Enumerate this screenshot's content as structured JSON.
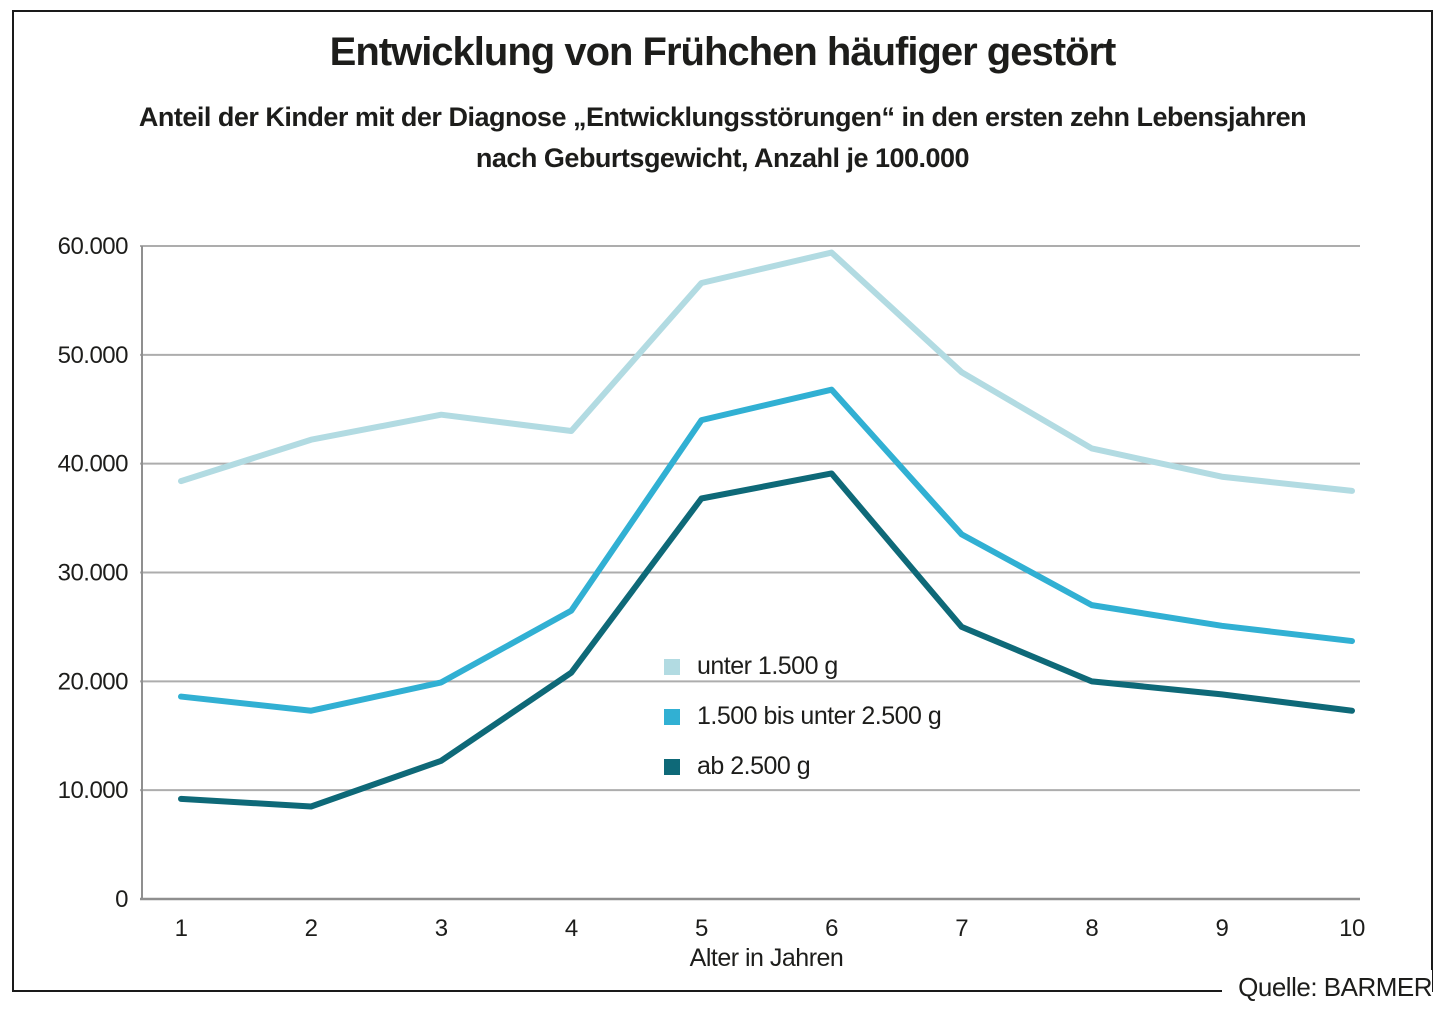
{
  "header": {
    "title": "Entwicklung von Frühchen häufiger gestört",
    "subtitle_lines": [
      "Anteil der Kinder mit der Diagnose „Entwicklungsstörungen“ in den ersten zehn Lebensjahren",
      "nach Geburtsgewicht, Anzahl je 100.000"
    ]
  },
  "source": "Quelle: BARMER",
  "colors": {
    "grid": "#adadad",
    "axis": "#8f8f8f",
    "text": "#1d1d1b",
    "frame": "#1a1a1a"
  },
  "chart_data": {
    "type": "line",
    "title": "Entwicklung von Frühchen häufiger gestört",
    "subtitle": "Anteil der Kinder mit der Diagnose „Entwicklungsstörungen“ in den ersten zehn Lebensjahren nach Geburtsgewicht, Anzahl je 100.000",
    "xlabel": "Alter in Jahren",
    "ylabel": "",
    "x": [
      1,
      2,
      3,
      4,
      5,
      6,
      7,
      8,
      9,
      10
    ],
    "ylim": [
      0,
      60000
    ],
    "ytick_values": [
      0,
      10000,
      20000,
      30000,
      40000,
      50000,
      60000
    ],
    "ytick_labels": [
      "0",
      "10.000",
      "20.000",
      "30.000",
      "40.000",
      "50.000",
      "60.000"
    ],
    "grid": "horizontal",
    "legend_position": "inside-center",
    "series": [
      {
        "label": "unter 1.500 g",
        "color": "#b2dbe2",
        "values": [
          38400,
          42200,
          44500,
          43000,
          56600,
          59400,
          48400,
          41400,
          38800,
          37500
        ]
      },
      {
        "label": "1.500 bis unter 2.500 g",
        "color": "#31b0d3",
        "values": [
          18600,
          17300,
          19900,
          26500,
          44000,
          46800,
          33500,
          27000,
          25100,
          23700
        ]
      },
      {
        "label": "ab 2.500 g",
        "color": "#0e6978",
        "values": [
          9200,
          8500,
          12700,
          20800,
          36800,
          39100,
          25000,
          20000,
          18800,
          17300
        ]
      }
    ]
  }
}
